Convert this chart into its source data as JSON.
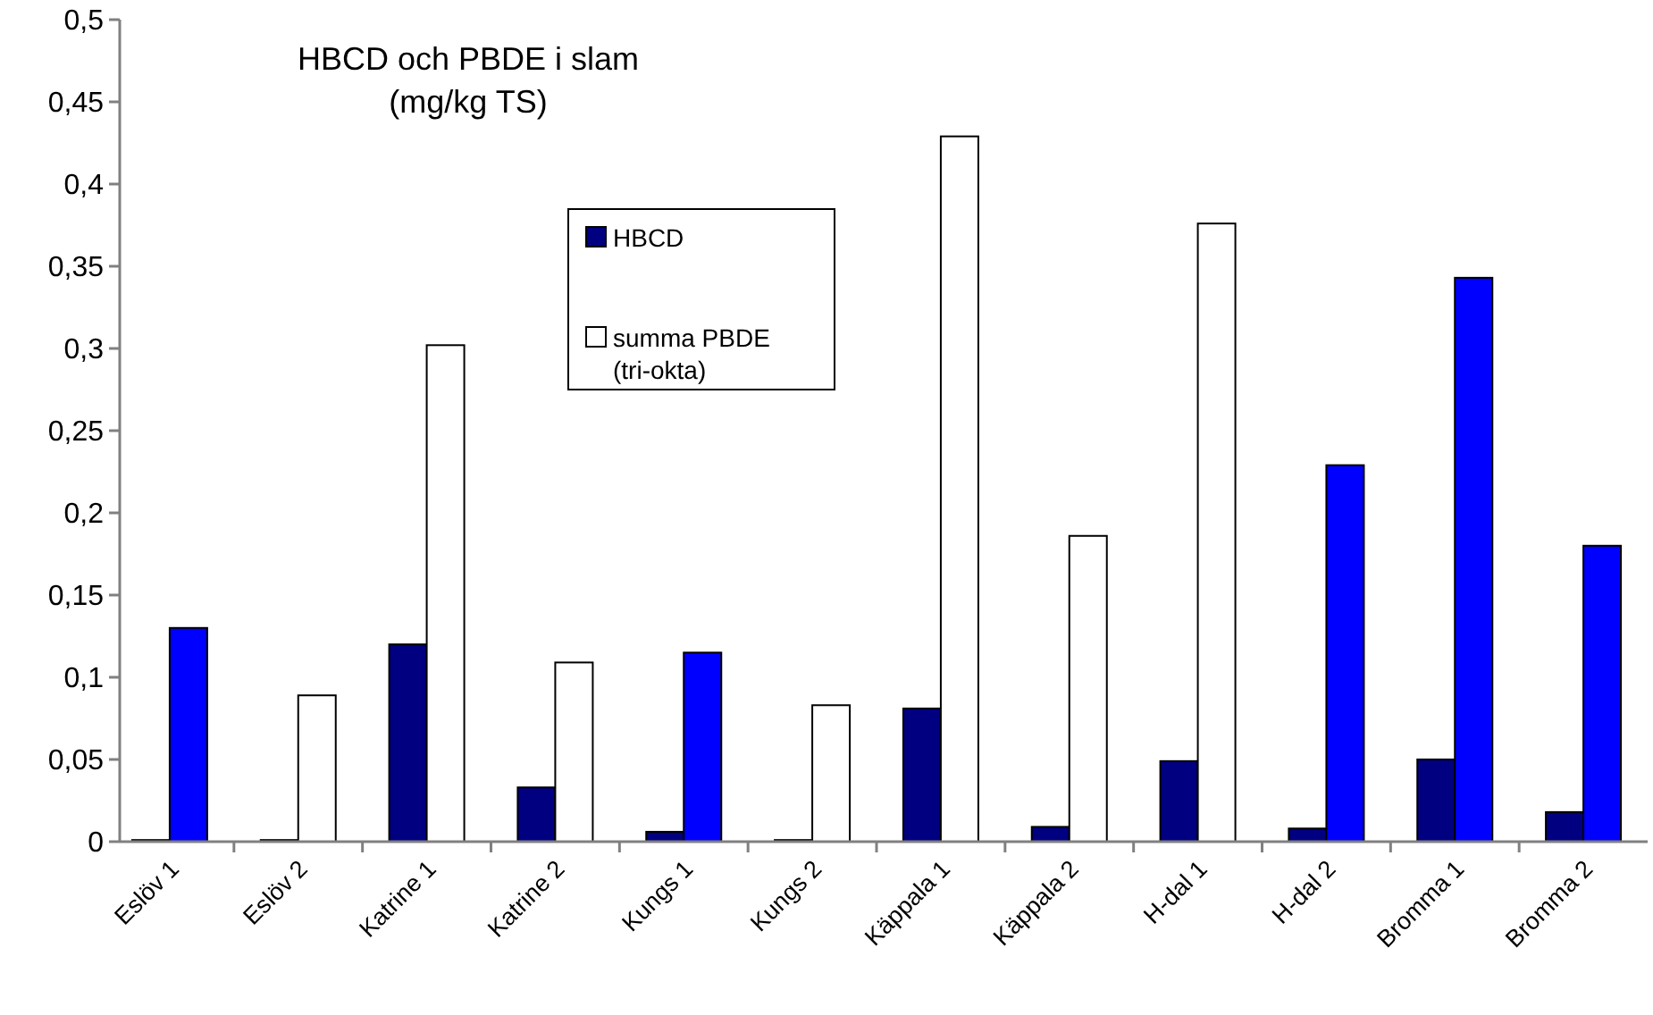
{
  "chart_data": {
    "type": "bar",
    "title": "HBCD och PBDE i slam",
    "subtitle": "(mg/kg TS)",
    "categories": [
      "Eslöv 1",
      "Eslöv 2",
      "Katrine 1",
      "Katrine 2",
      "Kungs 1",
      "Kungs 2",
      "Käppala 1",
      "Käppala 2",
      "H-dal 1",
      "H-dal 2",
      "Bromma 1",
      "Bromma 2"
    ],
    "series": [
      {
        "name": "HBCD",
        "color": "#000080",
        "values": [
          0.001,
          0.001,
          0.12,
          0.033,
          0.006,
          0.001,
          0.081,
          0.009,
          0.049,
          0.008,
          0.05,
          0.018
        ]
      },
      {
        "name": "summa PBDE (tri-okta)",
        "color": "#ffffff",
        "colors": [
          "#0000ff",
          "#ffffff",
          "#ffffff",
          "#ffffff",
          "#0000ff",
          "#ffffff",
          "#ffffff",
          "#ffffff",
          "#ffffff",
          "#0000ff",
          "#0000ff",
          "#0000ff"
        ],
        "values": [
          0.13,
          0.089,
          0.302,
          0.109,
          0.115,
          0.083,
          0.429,
          0.186,
          0.376,
          0.229,
          0.343,
          0.18
        ]
      }
    ],
    "ylim": [
      0,
      0.5
    ],
    "yticks": [
      {
        "value": 0,
        "label": "0"
      },
      {
        "value": 0.05,
        "label": "0,05"
      },
      {
        "value": 0.1,
        "label": "0,1"
      },
      {
        "value": 0.15,
        "label": "0,15"
      },
      {
        "value": 0.2,
        "label": "0,2"
      },
      {
        "value": 0.25,
        "label": "0,25"
      },
      {
        "value": 0.3,
        "label": "0,3"
      },
      {
        "value": 0.35,
        "label": "0,35"
      },
      {
        "value": 0.4,
        "label": "0,4"
      },
      {
        "value": 0.45,
        "label": "0,45"
      },
      {
        "value": 0.5,
        "label": "0,5"
      }
    ],
    "legend": "top",
    "grid": false
  }
}
